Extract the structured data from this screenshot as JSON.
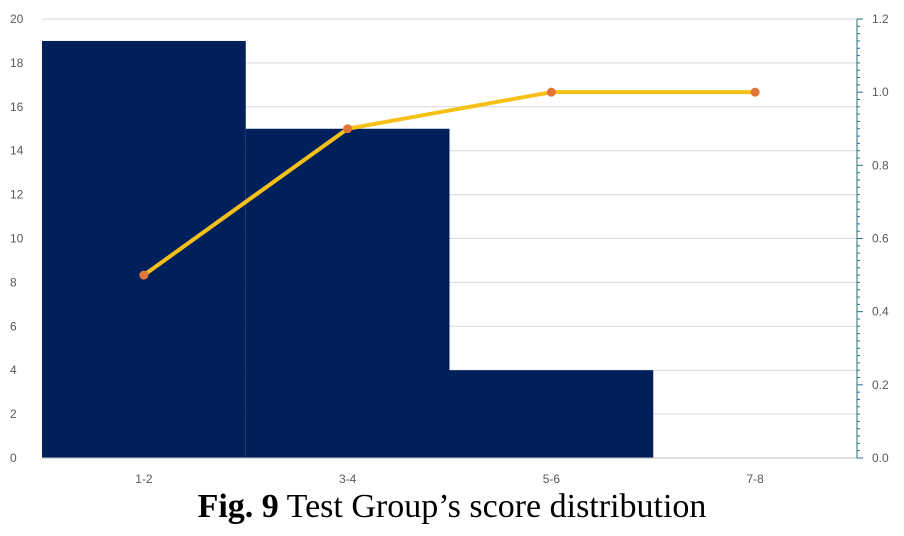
{
  "chart_data": {
    "type": "bar",
    "categories": [
      "1-2",
      "3-4",
      "5-6",
      "7-8"
    ],
    "series": [
      {
        "type": "bar",
        "values": [
          19,
          15,
          4,
          0
        ],
        "color": "#00205b",
        "axis": "left"
      },
      {
        "type": "line",
        "values": [
          0.5,
          0.9,
          1.0,
          1.0
        ],
        "color": "#f5c018",
        "marker_color": "#e2753a",
        "axis": "right"
      }
    ],
    "ylim": [
      0,
      20
    ],
    "yticks": [
      "0",
      "2",
      "4",
      "6",
      "8",
      "10",
      "12",
      "14",
      "16",
      "18",
      "20"
    ],
    "y2lim": [
      0,
      1.2
    ],
    "y2ticks": [
      "0.0",
      "0.2",
      "0.4",
      "0.6",
      "0.8",
      "1.0",
      "1.2"
    ],
    "grid": true,
    "axis_color": "#2e6d7e"
  },
  "caption": {
    "fig_label": "Fig. 9",
    "text": "Test Group’s score distribution"
  }
}
